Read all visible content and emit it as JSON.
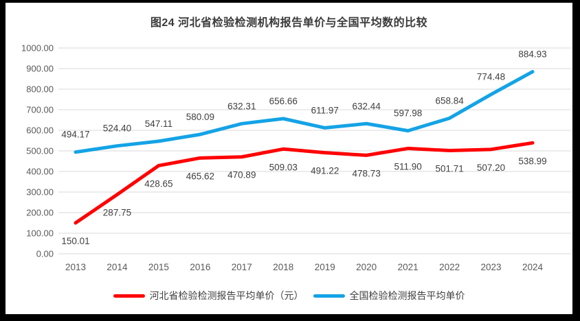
{
  "title": "图24 河北省检验检测机构报告单价与全国平均数的比较",
  "colors": {
    "frame": "#000000",
    "background": "#FFFFFF",
    "gridline": "#D9D9D9",
    "axis_label": "#595959",
    "data_label": "#404040",
    "title_text": "#3A3A3A",
    "hebei_line": "#FF0000",
    "national_line": "#14A3E6"
  },
  "chart_data": {
    "type": "line",
    "title": "图24 河北省检验检测机构报告单价与全国平均数的比较",
    "categories": [
      "2013",
      "2014",
      "2015",
      "2016",
      "2017",
      "2018",
      "2019",
      "2020",
      "2021",
      "2022",
      "2023",
      "2024"
    ],
    "series": [
      {
        "name": "河北省检验检测报告平均单价（元）",
        "slug": "hebei",
        "color": "#FF0000",
        "label_position": "below",
        "values": [
          150.01,
          287.75,
          428.65,
          465.62,
          470.89,
          509.03,
          491.22,
          478.73,
          511.9,
          501.71,
          507.2,
          538.99
        ]
      },
      {
        "name": "全国检验检测报告平均单价",
        "slug": "national",
        "color": "#14A3E6",
        "label_position": "above",
        "values": [
          494.17,
          524.4,
          547.11,
          580.09,
          632.31,
          656.66,
          611.97,
          632.44,
          597.98,
          658.84,
          774.48,
          884.93
        ]
      }
    ],
    "ylim": [
      0,
      1000
    ],
    "ytick_step": 100,
    "ytick_decimals": 2,
    "data_label_decimals": 2,
    "grid": "horizontal",
    "legend_position": "bottom"
  }
}
